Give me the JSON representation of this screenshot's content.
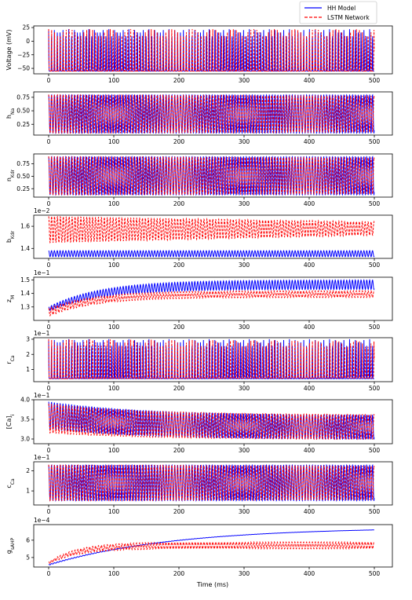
{
  "chart_data": {
    "type": "line",
    "xlabel": "Time (ms)",
    "xlim": [
      0,
      500
    ],
    "x_ticks": [
      "0",
      "100",
      "200",
      "300",
      "400",
      "500"
    ],
    "legend": {
      "placement": "top-right",
      "entries": [
        {
          "name": "HH Model",
          "color": "#0000ff",
          "style": "solid"
        },
        {
          "name": "LSTM Network",
          "color": "#ff0000",
          "style": "dashed"
        }
      ]
    },
    "panels": [
      {
        "ylabel": "Voltage (mV)",
        "exponent": "",
        "ylim": [
          -60,
          28
        ],
        "yticks": [
          25,
          0,
          -25,
          -50
        ],
        "ytick_labels": [
          "25",
          "0",
          "−25",
          "−50"
        ],
        "series": [
          {
            "name": "HH Model",
            "baseline": -55,
            "peak": 22,
            "baseline_end": -55,
            "peak_end": 22,
            "period_ms": 4.4,
            "duty": 0.08
          },
          {
            "name": "LSTM Network",
            "baseline": -55,
            "peak": 22,
            "baseline_end": -55,
            "peak_end": 22,
            "period_ms": 4.5,
            "duty": 0.08
          }
        ]
      },
      {
        "ylabel": "h_Na",
        "exponent": "",
        "ylim": [
          0.05,
          0.85
        ],
        "yticks": [
          0.75,
          0.5,
          0.25
        ],
        "ytick_labels": [
          "0.75",
          "0.50",
          "0.25"
        ],
        "series": [
          {
            "name": "HH Model",
            "baseline": 0.08,
            "peak": 0.8,
            "baseline_end": 0.08,
            "peak_end": 0.8,
            "period_ms": 4.4,
            "duty": 0.5
          },
          {
            "name": "LSTM Network",
            "baseline": 0.08,
            "peak": 0.8,
            "baseline_end": 0.1,
            "peak_end": 0.78,
            "period_ms": 4.5,
            "duty": 0.5
          }
        ]
      },
      {
        "ylabel": "n_Kdr",
        "exponent": "",
        "ylim": [
          0.08,
          0.95
        ],
        "yticks": [
          0.75,
          0.5,
          0.25
        ],
        "ytick_labels": [
          "0.75",
          "0.50",
          "0.25"
        ],
        "series": [
          {
            "name": "HH Model",
            "baseline": 0.12,
            "peak": 0.9,
            "baseline_end": 0.12,
            "peak_end": 0.9,
            "period_ms": 4.4,
            "duty": 0.5
          },
          {
            "name": "LSTM Network",
            "baseline": 0.12,
            "peak": 0.9,
            "baseline_end": 0.14,
            "peak_end": 0.88,
            "period_ms": 4.5,
            "duty": 0.5
          }
        ]
      },
      {
        "ylabel": "b_Kdr",
        "exponent": "1e−2",
        "ylim": [
          1.31,
          1.7
        ],
        "yticks": [
          1.6,
          1.4
        ],
        "ytick_labels": [
          "1.6",
          "1.4"
        ],
        "series": [
          {
            "name": "HH Model",
            "baseline": 1.325,
            "peak": 1.38,
            "baseline_end": 1.325,
            "peak_end": 1.38,
            "period_ms": 4.4,
            "duty": 0.5
          },
          {
            "name": "LSTM Network",
            "baseline": 1.45,
            "peak": 1.69,
            "baseline_end": 1.52,
            "peak_end": 1.64,
            "period_ms": 4.5,
            "duty": 0.5
          }
        ]
      },
      {
        "ylabel": "z_M",
        "exponent": "1e−1",
        "ylim": [
          1.2,
          1.52
        ],
        "yticks": [
          1.5,
          1.4,
          1.3
        ],
        "ytick_labels": [
          "1.5",
          "1.4",
          "1.3"
        ],
        "series": [
          {
            "name": "HH Model",
            "baseline": 1.27,
            "peak": 1.3,
            "baseline_end": 1.43,
            "peak_end": 1.5,
            "tau_ms": 80,
            "period_ms": 4.4,
            "duty": 0.5
          },
          {
            "name": "LSTM Network",
            "baseline": 1.23,
            "peak": 1.29,
            "baseline_end": 1.37,
            "peak_end": 1.42,
            "tau_ms": 70,
            "period_ms": 4.5,
            "duty": 0.5
          }
        ]
      },
      {
        "ylabel": "r_Ca",
        "exponent": "1e−1",
        "ylim": [
          0.2,
          3.1
        ],
        "yticks": [
          3,
          2,
          1
        ],
        "ytick_labels": [
          "3",
          "2",
          "1"
        ],
        "series": [
          {
            "name": "HH Model",
            "baseline": 0.4,
            "peak": 3.0,
            "baseline_end": 0.4,
            "peak_end": 3.0,
            "period_ms": 4.4,
            "duty": 0.15
          },
          {
            "name": "LSTM Network",
            "baseline": 0.4,
            "peak": 3.0,
            "baseline_end": 0.45,
            "peak_end": 2.9,
            "period_ms": 4.5,
            "duty": 0.15
          }
        ]
      },
      {
        "ylabel": "[Ca]_i",
        "exponent": "1e−1",
        "ylim": [
          2.88,
          4.0
        ],
        "yticks": [
          4.0,
          3.5,
          3.0
        ],
        "ytick_labels": [
          "4.0",
          "3.5",
          "3.0"
        ],
        "series": [
          {
            "name": "HH Model",
            "baseline": 3.25,
            "peak": 3.95,
            "baseline_end": 2.98,
            "peak_end": 3.6,
            "tau_ms": 150,
            "period_ms": 4.4,
            "duty": 0.5
          },
          {
            "name": "LSTM Network",
            "baseline": 3.15,
            "peak": 3.9,
            "baseline_end": 2.98,
            "peak_end": 3.62,
            "tau_ms": 150,
            "period_ms": 4.5,
            "duty": 0.5
          }
        ]
      },
      {
        "ylabel": "c_Ca",
        "exponent": "1e−1",
        "ylim": [
          0.3,
          2.45
        ],
        "yticks": [
          2,
          1
        ],
        "ytick_labels": [
          "2",
          "1"
        ],
        "series": [
          {
            "name": "HH Model",
            "baseline": 0.5,
            "peak": 2.3,
            "baseline_end": 0.5,
            "peak_end": 2.3,
            "period_ms": 4.4,
            "duty": 0.5
          },
          {
            "name": "LSTM Network",
            "baseline": 0.5,
            "peak": 2.3,
            "baseline_end": 0.55,
            "peak_end": 2.25,
            "period_ms": 4.5,
            "duty": 0.5
          }
        ]
      },
      {
        "ylabel": "g_sAHP",
        "exponent": "1e−4",
        "ylim": [
          4.45,
          6.9
        ],
        "yticks": [
          6,
          5
        ],
        "ytick_labels": [
          "6",
          "5"
        ],
        "series": [
          {
            "name": "HH Model",
            "baseline": 4.55,
            "peak": 4.6,
            "baseline_end": 6.75,
            "peak_end": 6.75,
            "tau_ms": 190,
            "period_ms": 4.4,
            "duty": 0.5
          },
          {
            "name": "LSTM Network",
            "baseline": 4.6,
            "peak": 4.75,
            "baseline_end": 5.5,
            "peak_end": 5.9,
            "tau_ms": 45,
            "period_ms": 4.5,
            "duty": 0.5
          }
        ]
      }
    ]
  }
}
